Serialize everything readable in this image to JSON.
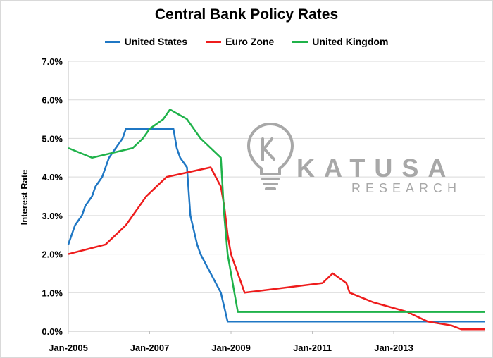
{
  "chart_data": {
    "type": "line",
    "title": "Central Bank Policy Rates",
    "xlabel": "",
    "ylabel": "Interest Rate",
    "x_tick_labels": [
      "Jan-2005",
      "Jan-2007",
      "Jan-2009",
      "Jan-2011",
      "Jan-2013"
    ],
    "y_tick_labels": [
      "0.0%",
      "1.0%",
      "2.0%",
      "3.0%",
      "4.0%",
      "5.0%",
      "6.0%",
      "7.0%"
    ],
    "xlim": [
      "2005-01",
      "2015-04"
    ],
    "ylim": [
      0,
      7
    ],
    "grid": "horizontal",
    "legend_position": "top",
    "series": [
      {
        "name": "United States",
        "color": "#1f77c4",
        "points": [
          [
            "2005-01",
            2.25
          ],
          [
            "2005-02",
            2.5
          ],
          [
            "2005-03",
            2.75
          ],
          [
            "2005-05",
            3.0
          ],
          [
            "2005-06",
            3.25
          ],
          [
            "2005-08",
            3.5
          ],
          [
            "2005-09",
            3.75
          ],
          [
            "2005-11",
            4.0
          ],
          [
            "2005-12",
            4.25
          ],
          [
            "2006-01",
            4.5
          ],
          [
            "2006-03",
            4.75
          ],
          [
            "2006-05",
            5.0
          ],
          [
            "2006-06",
            5.25
          ],
          [
            "2007-08",
            5.25
          ],
          [
            "2007-09",
            4.75
          ],
          [
            "2007-10",
            4.5
          ],
          [
            "2007-12",
            4.25
          ],
          [
            "2008-01",
            3.0
          ],
          [
            "2008-03",
            2.25
          ],
          [
            "2008-04",
            2.0
          ],
          [
            "2008-10",
            1.0
          ],
          [
            "2008-12",
            0.25
          ],
          [
            "2015-04",
            0.25
          ]
        ]
      },
      {
        "name": "Euro Zone",
        "color": "#ee1c1c",
        "points": [
          [
            "2005-01",
            2.0
          ],
          [
            "2005-12",
            2.25
          ],
          [
            "2006-03",
            2.5
          ],
          [
            "2006-06",
            2.75
          ],
          [
            "2006-08",
            3.0
          ],
          [
            "2006-10",
            3.25
          ],
          [
            "2006-12",
            3.5
          ],
          [
            "2007-03",
            3.75
          ],
          [
            "2007-06",
            4.0
          ],
          [
            "2008-07",
            4.25
          ],
          [
            "2008-10",
            3.75
          ],
          [
            "2008-11",
            3.25
          ],
          [
            "2008-12",
            2.5
          ],
          [
            "2009-01",
            2.0
          ],
          [
            "2009-03",
            1.5
          ],
          [
            "2009-04",
            1.25
          ],
          [
            "2009-05",
            1.0
          ],
          [
            "2011-04",
            1.25
          ],
          [
            "2011-07",
            1.5
          ],
          [
            "2011-11",
            1.25
          ],
          [
            "2011-12",
            1.0
          ],
          [
            "2012-07",
            0.75
          ],
          [
            "2013-05",
            0.5
          ],
          [
            "2013-11",
            0.25
          ],
          [
            "2014-06",
            0.15
          ],
          [
            "2014-09",
            0.05
          ],
          [
            "2015-04",
            0.05
          ]
        ]
      },
      {
        "name": "United Kingdom",
        "color": "#1fb24a",
        "points": [
          [
            "2005-01",
            4.75
          ],
          [
            "2005-08",
            4.5
          ],
          [
            "2006-08",
            4.75
          ],
          [
            "2006-11",
            5.0
          ],
          [
            "2007-01",
            5.25
          ],
          [
            "2007-05",
            5.5
          ],
          [
            "2007-07",
            5.75
          ],
          [
            "2007-12",
            5.5
          ],
          [
            "2008-02",
            5.25
          ],
          [
            "2008-04",
            5.0
          ],
          [
            "2008-10",
            4.5
          ],
          [
            "2008-11",
            3.0
          ],
          [
            "2008-12",
            2.0
          ],
          [
            "2009-01",
            1.5
          ],
          [
            "2009-02",
            1.0
          ],
          [
            "2009-03",
            0.5
          ],
          [
            "2015-04",
            0.5
          ]
        ]
      }
    ]
  },
  "watermark": {
    "name": "KATUSA",
    "sub": "RESEARCH"
  }
}
